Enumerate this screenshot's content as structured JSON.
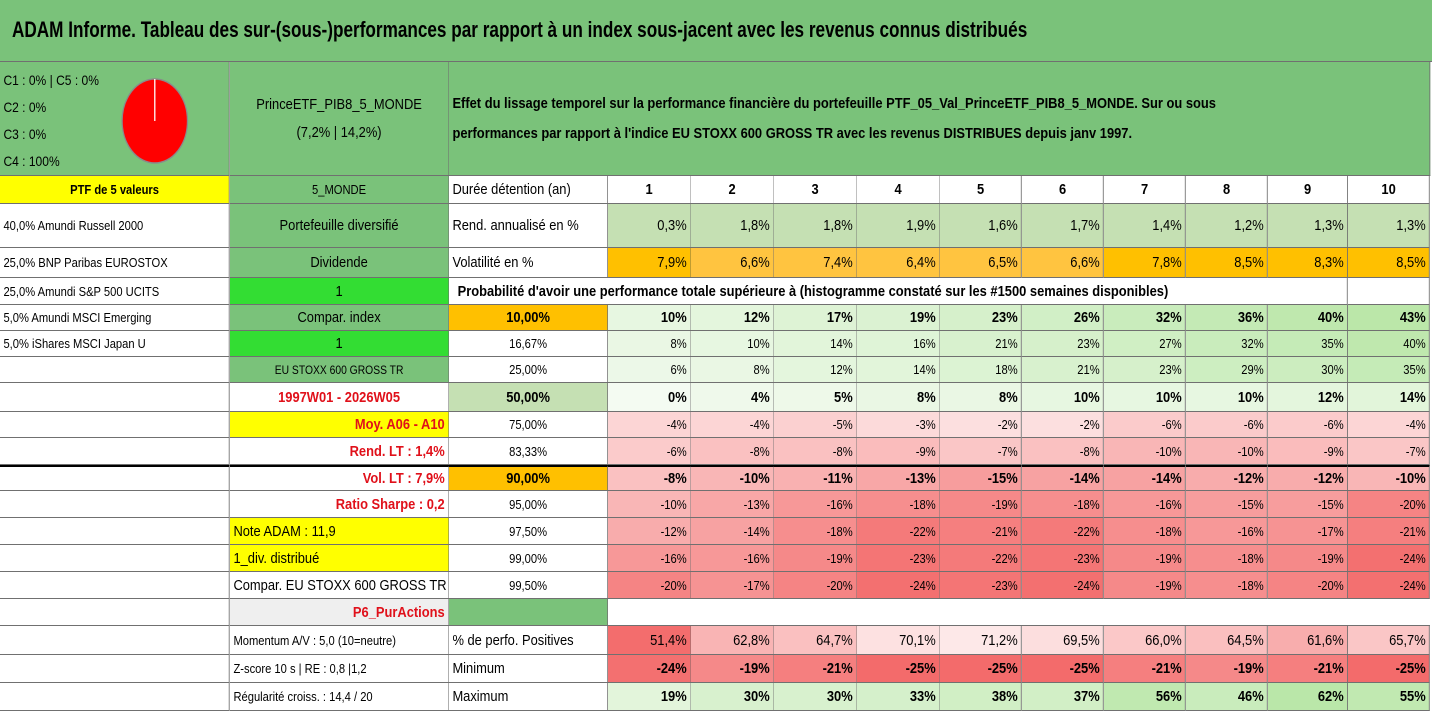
{
  "title": "ADAM Informe. Tableau des sur-(sous-)performances par rapport à un index sous-jacent avec les revenus connus distribués",
  "alloc_lines": [
    "C1 : 0% | C5 : 0%",
    "C2 : 0%",
    "C3 : 0%",
    "C4 : 100%"
  ],
  "portfolio_name": "PrinceETF_PIB8_5_MONDE",
  "portfolio_stats": "(7,2% | 14,2%)",
  "description_lines": [
    "Effet du lissage temporel sur la performance financière du portefeuille PTF_05_Val_PrinceETF_PIB8_5_MONDE. Sur ou sous",
    "performances par rapport à l'indice EU STOXX 600 GROSS TR avec les revenus DISTRIBUES depuis janv 1997."
  ],
  "holdings_header": "PTF de 5 valeurs",
  "holdings": [
    "40,0% Amundi Russell 2000",
    "25,0% BNP Paribas EUROSTOX",
    "25,0% Amundi S&P 500 UCITS",
    "5,0% Amundi MSCI Emerging",
    "5,0% iShares MSCI Japan U"
  ],
  "info": {
    "code": "5_MONDE",
    "type": "Portefeuille diversifié",
    "dividend_label": "Dividende",
    "dividend_value": "1",
    "compar_label": "Compar. index",
    "compar_value": "1",
    "index_name": "EU STOXX 600 GROSS TR",
    "period": "1997W01 - 2026W05",
    "moy": "Moy. A06 - A10",
    "rend_lt": "Rend. LT : 1,4%",
    "vol_lt": "Vol. LT : 7,9%",
    "sharpe": "Ratio Sharpe : 0,2",
    "note": "Note ADAM : 11,9",
    "div_distrib": "1_div. distribué",
    "compar_full": "Compar. EU STOXX 600 GROSS TR",
    "p6": "P6_PurActions",
    "momentum": "Momentum A/V : 5,0 (10=neutre)",
    "zscore": "Z-score 10 s | RE : 0,8 |1,2",
    "regularite": "Régularité croiss. : 14,4 / 20"
  },
  "table": {
    "duration_label": "Durée détention (an)",
    "years": [
      "1",
      "2",
      "3",
      "4",
      "5",
      "6",
      "7",
      "8",
      "9",
      "10"
    ],
    "rend_label": "Rend. annualisé en %",
    "rend": [
      "0,3%",
      "1,8%",
      "1,8%",
      "1,9%",
      "1,6%",
      "1,7%",
      "1,4%",
      "1,2%",
      "1,3%",
      "1,3%"
    ],
    "vol_label": "Volatilité en %",
    "vol": [
      "7,9%",
      "6,6%",
      "7,4%",
      "6,4%",
      "6,5%",
      "6,6%",
      "7,8%",
      "8,5%",
      "8,3%",
      "8,5%"
    ],
    "prob_title": "Probabilité d'avoir une performance totale supérieure à (histogramme constaté sur les #1500 semaines disponibles)",
    "quantiles": [
      {
        "label": "10,00%",
        "values": [
          "10%",
          "12%",
          "17%",
          "19%",
          "23%",
          "26%",
          "32%",
          "36%",
          "40%",
          "43%"
        ]
      },
      {
        "label": "16,67%",
        "values": [
          "8%",
          "10%",
          "14%",
          "16%",
          "21%",
          "23%",
          "27%",
          "32%",
          "35%",
          "40%"
        ]
      },
      {
        "label": "25,00%",
        "values": [
          "6%",
          "8%",
          "12%",
          "14%",
          "18%",
          "21%",
          "23%",
          "29%",
          "30%",
          "35%"
        ]
      },
      {
        "label": "50,00%",
        "values": [
          "0%",
          "4%",
          "5%",
          "8%",
          "8%",
          "10%",
          "10%",
          "10%",
          "12%",
          "14%"
        ]
      },
      {
        "label": "75,00%",
        "values": [
          "-4%",
          "-4%",
          "-5%",
          "-3%",
          "-2%",
          "-2%",
          "-6%",
          "-6%",
          "-6%",
          "-4%"
        ]
      },
      {
        "label": "83,33%",
        "values": [
          "-6%",
          "-8%",
          "-8%",
          "-9%",
          "-7%",
          "-8%",
          "-10%",
          "-10%",
          "-9%",
          "-7%"
        ]
      },
      {
        "label": "90,00%",
        "values": [
          "-8%",
          "-10%",
          "-11%",
          "-13%",
          "-15%",
          "-14%",
          "-14%",
          "-12%",
          "-12%",
          "-10%"
        ]
      },
      {
        "label": "95,00%",
        "values": [
          "-10%",
          "-13%",
          "-16%",
          "-18%",
          "-19%",
          "-18%",
          "-16%",
          "-15%",
          "-15%",
          "-20%"
        ]
      },
      {
        "label": "97,50%",
        "values": [
          "-12%",
          "-14%",
          "-18%",
          "-22%",
          "-21%",
          "-22%",
          "-18%",
          "-16%",
          "-17%",
          "-21%"
        ]
      },
      {
        "label": "99,00%",
        "values": [
          "-16%",
          "-16%",
          "-19%",
          "-23%",
          "-22%",
          "-23%",
          "-19%",
          "-18%",
          "-19%",
          "-24%"
        ]
      },
      {
        "label": "99,50%",
        "values": [
          "-20%",
          "-17%",
          "-20%",
          "-24%",
          "-23%",
          "-24%",
          "-19%",
          "-18%",
          "-20%",
          "-24%"
        ]
      }
    ],
    "pos_label": "% de perfo. Positives",
    "pos": [
      "51,4%",
      "62,8%",
      "64,7%",
      "70,1%",
      "71,2%",
      "69,5%",
      "66,0%",
      "64,5%",
      "61,6%",
      "65,7%"
    ],
    "min_label": "Minimum",
    "min": [
      "-24%",
      "-19%",
      "-21%",
      "-25%",
      "-25%",
      "-25%",
      "-21%",
      "-19%",
      "-21%",
      "-25%"
    ],
    "max_label": "Maximum",
    "max": [
      "19%",
      "30%",
      "30%",
      "33%",
      "38%",
      "37%",
      "56%",
      "46%",
      "62%",
      "55%"
    ]
  },
  "colors": {
    "header_green": "#7ac27a",
    "light_green": "#c5e0b3",
    "yellow": "#ffff00",
    "orange": "#ffc000",
    "bright_green": "#33dd33",
    "pie_red": "#ff0000"
  }
}
